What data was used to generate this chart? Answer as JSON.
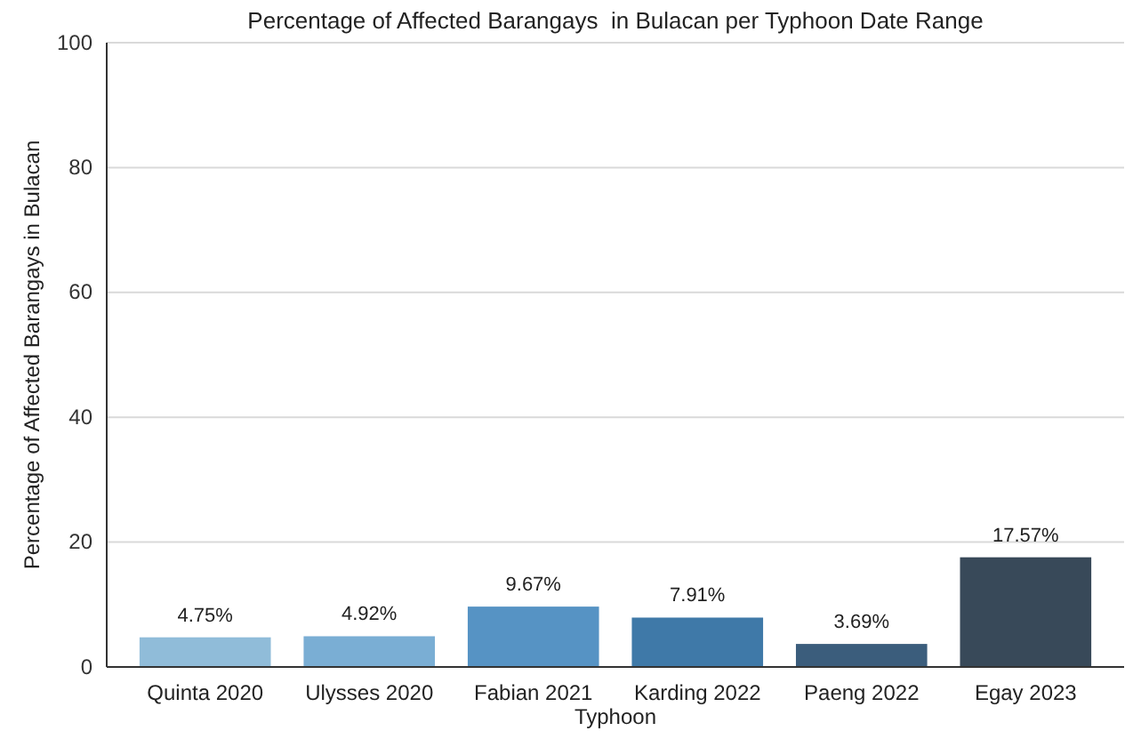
{
  "chart_data": {
    "type": "bar",
    "title": "Percentage of Affected Barangays  in Bulacan per Typhoon Date Range",
    "xlabel": "Typhoon",
    "ylabel": "Percentage of Affected Barangays in Bulacan",
    "categories": [
      "Quinta 2020",
      "Ulysses 2020",
      "Fabian 2021",
      "Karding 2022",
      "Paeng 2022",
      "Egay 2023"
    ],
    "values": [
      4.75,
      4.92,
      9.67,
      7.91,
      3.69,
      17.57
    ],
    "colors": [
      "#90bcd9",
      "#7aaed4",
      "#5693c4",
      "#3f79a8",
      "#3b5d7c",
      "#384959"
    ],
    "value_labels": [
      "4.75%",
      "4.92%",
      "9.67%",
      "7.91%",
      "3.69%",
      "17.57%"
    ],
    "ylim": [
      0,
      100
    ],
    "yticks": [
      0,
      20,
      40,
      60,
      80,
      100
    ],
    "grid": "y"
  }
}
